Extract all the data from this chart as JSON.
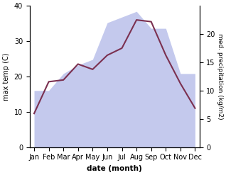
{
  "months": [
    "Jan",
    "Feb",
    "Mar",
    "Apr",
    "May",
    "Jun",
    "Jul",
    "Aug",
    "Sep",
    "Oct",
    "Nov",
    "Dec"
  ],
  "month_positions": [
    0,
    1,
    2,
    3,
    4,
    5,
    6,
    7,
    8,
    9,
    10,
    11
  ],
  "precipitation": [
    10,
    10,
    13,
    14.5,
    15.5,
    22,
    23,
    24,
    21,
    21,
    13,
    13
  ],
  "temperature": [
    9.5,
    18.5,
    19,
    23.5,
    22,
    26,
    28,
    36,
    35.5,
    26,
    18,
    11
  ],
  "temp_ylim": [
    0,
    40
  ],
  "precip_ylim": [
    0,
    25
  ],
  "precip_right_ticks": [
    0,
    5,
    10,
    15,
    20
  ],
  "temp_left_ticks": [
    0,
    10,
    20,
    30,
    40
  ],
  "fill_color": "#b0b8e8",
  "fill_alpha": 0.75,
  "line_color": "#7b3050",
  "xlabel": "date (month)",
  "ylabel_left": "max temp (C)",
  "ylabel_right": "med. precipitation (kg/m2)",
  "figsize": [
    3.18,
    2.47
  ],
  "dpi": 100
}
